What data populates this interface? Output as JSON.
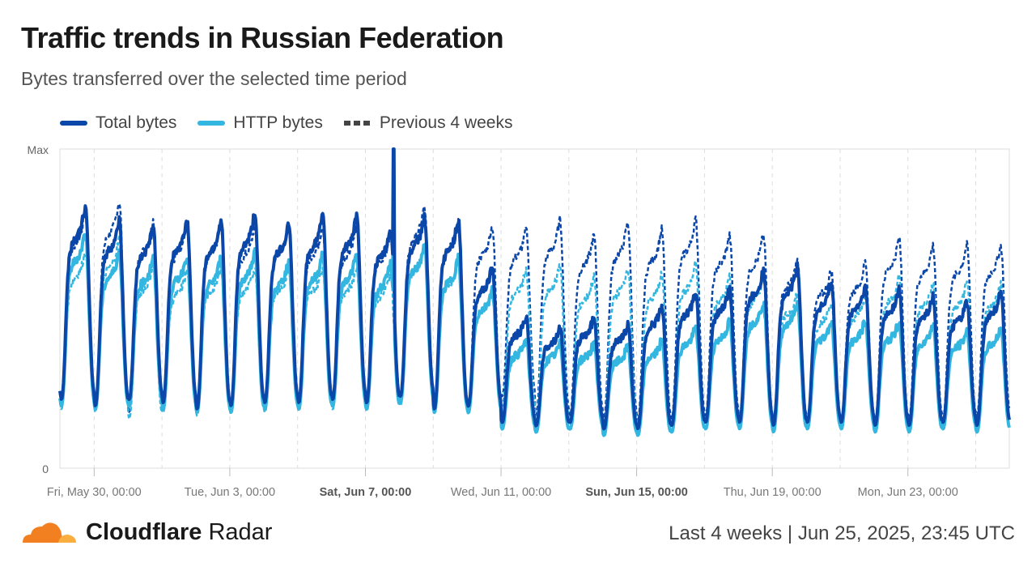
{
  "header": {
    "title": "Traffic trends in Russian Federation",
    "subtitle": "Bytes transferred over the selected time period"
  },
  "legend": [
    {
      "label": "Total bytes",
      "color": "#0b47a8",
      "style": "solid"
    },
    {
      "label": "HTTP bytes",
      "color": "#33b7e0",
      "style": "solid"
    },
    {
      "label": "Previous 4 weeks",
      "color": "#444444",
      "style": "dashed"
    }
  ],
  "footer": {
    "brand_bold": "Cloudflare",
    "brand_light": "Radar",
    "range": "Last 4 weeks",
    "separator": "|",
    "timestamp": "Jun 25, 2025, 23:45 UTC"
  },
  "chart_data": {
    "type": "line",
    "title": "Traffic trends in Russian Federation",
    "subtitle": "Bytes transferred over the selected time period",
    "y_ticks": [
      "Max",
      "0"
    ],
    "ylim": [
      0,
      1
    ],
    "x_range": [
      "2025-05-28T23:45Z",
      "2025-06-25T23:45Z"
    ],
    "x_ticks": [
      {
        "label": "Fri, May 30, 00:00",
        "date": "2025-05-30",
        "bold": false
      },
      {
        "label": "Tue, Jun 3, 00:00",
        "date": "2025-06-03",
        "bold": false
      },
      {
        "label": "Sat, Jun 7, 00:00",
        "date": "2025-06-07",
        "bold": true
      },
      {
        "label": "Wed, Jun 11, 00:00",
        "date": "2025-06-11",
        "bold": false
      },
      {
        "label": "Sun, Jun 15, 00:00",
        "date": "2025-06-15",
        "bold": true
      },
      {
        "label": "Thu, Jun 19, 00:00",
        "date": "2025-06-19",
        "bold": false
      },
      {
        "label": "Mon, Jun 23, 00:00",
        "date": "2025-06-23",
        "bold": false
      }
    ],
    "grid": "vertical dashed, every 2 days",
    "days": [
      "May 29",
      "May 30",
      "May 31",
      "Jun 1",
      "Jun 2",
      "Jun 3",
      "Jun 4",
      "Jun 5",
      "Jun 6",
      "Jun 7",
      "Jun 8",
      "Jun 9",
      "Jun 10",
      "Jun 11",
      "Jun 12",
      "Jun 13",
      "Jun 14",
      "Jun 15",
      "Jun 16",
      "Jun 17",
      "Jun 18",
      "Jun 19",
      "Jun 20",
      "Jun 21",
      "Jun 22",
      "Jun 23",
      "Jun 24",
      "Jun 25"
    ],
    "series": [
      {
        "name": "Total bytes",
        "color": "#0b47a8",
        "dashed": false,
        "daily_peak": [
          0.82,
          0.78,
          0.76,
          0.78,
          0.78,
          0.8,
          0.77,
          0.79,
          0.79,
          0.75,
          0.79,
          0.78,
          0.63,
          0.47,
          0.44,
          0.47,
          0.45,
          0.51,
          0.55,
          0.56,
          0.62,
          0.63,
          0.58,
          0.57,
          0.56,
          0.54,
          0.52,
          0.55
        ],
        "daily_trough": [
          0.21,
          0.19,
          0.21,
          0.2,
          0.18,
          0.19,
          0.2,
          0.2,
          0.21,
          0.2,
          0.22,
          0.18,
          0.19,
          0.14,
          0.13,
          0.14,
          0.12,
          0.12,
          0.13,
          0.14,
          0.14,
          0.13,
          0.14,
          0.14,
          0.13,
          0.13,
          0.14,
          0.13
        ]
      },
      {
        "name": "HTTP bytes",
        "color": "#33b7e0",
        "dashed": false,
        "daily_peak": [
          0.74,
          0.68,
          0.66,
          0.67,
          0.66,
          0.68,
          0.65,
          0.67,
          0.67,
          0.64,
          0.7,
          0.66,
          0.56,
          0.4,
          0.39,
          0.39,
          0.38,
          0.4,
          0.44,
          0.46,
          0.52,
          0.52,
          0.46,
          0.46,
          0.46,
          0.45,
          0.43,
          0.44
        ],
        "daily_trough": [
          0.19,
          0.18,
          0.19,
          0.18,
          0.17,
          0.17,
          0.18,
          0.18,
          0.19,
          0.18,
          0.2,
          0.17,
          0.17,
          0.12,
          0.11,
          0.12,
          0.1,
          0.1,
          0.11,
          0.12,
          0.12,
          0.11,
          0.12,
          0.12,
          0.11,
          0.11,
          0.12,
          0.11
        ]
      },
      {
        "name": "Previous 4 weeks (Total bytes)",
        "color": "#0b47a8",
        "dashed": true,
        "daily_peak": [
          0.8,
          0.84,
          0.78,
          0.76,
          0.77,
          0.76,
          0.77,
          0.76,
          0.76,
          0.74,
          0.82,
          0.78,
          0.76,
          0.75,
          0.78,
          0.73,
          0.77,
          0.75,
          0.78,
          0.73,
          0.73,
          0.65,
          0.62,
          0.64,
          0.72,
          0.7,
          0.7,
          0.7
        ],
        "daily_trough": [
          0.2,
          0.19,
          0.17,
          0.19,
          0.18,
          0.19,
          0.19,
          0.2,
          0.2,
          0.2,
          0.21,
          0.19,
          0.19,
          0.22,
          0.16,
          0.16,
          0.15,
          0.14,
          0.15,
          0.16,
          0.15,
          0.15,
          0.15,
          0.15,
          0.14,
          0.15,
          0.15,
          0.16
        ]
      },
      {
        "name": "Previous 4 weeks (HTTP bytes)",
        "color": "#33b7e0",
        "dashed": true,
        "daily_peak": [
          0.68,
          0.72,
          0.64,
          0.62,
          0.63,
          0.63,
          0.63,
          0.63,
          0.63,
          0.61,
          0.7,
          0.65,
          0.63,
          0.62,
          0.64,
          0.6,
          0.63,
          0.61,
          0.64,
          0.6,
          0.6,
          0.55,
          0.52,
          0.54,
          0.6,
          0.58,
          0.58,
          0.58
        ],
        "daily_trough": [
          0.18,
          0.17,
          0.15,
          0.17,
          0.16,
          0.17,
          0.17,
          0.18,
          0.18,
          0.18,
          0.19,
          0.17,
          0.17,
          0.19,
          0.14,
          0.14,
          0.13,
          0.12,
          0.13,
          0.14,
          0.13,
          0.13,
          0.13,
          0.13,
          0.12,
          0.13,
          0.13,
          0.14
        ]
      }
    ],
    "annotations": [
      {
        "date": "2025-06-07T20:00Z",
        "total_bytes": 1.0,
        "http_bytes": 0.88
      }
    ]
  }
}
